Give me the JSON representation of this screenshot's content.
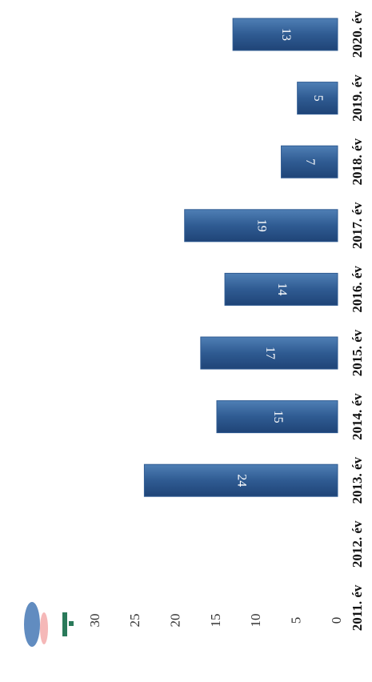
{
  "chart_data": {
    "type": "bar",
    "orientation": "horizontal",
    "categories": [
      "2011. év",
      "2012. év",
      "2013. év",
      "2014. év",
      "2015. év",
      "2016. év",
      "2017. év",
      "2018. év",
      "2019. év",
      "2020. év"
    ],
    "values": [
      null,
      null,
      24,
      15,
      17,
      14,
      19,
      7,
      5,
      13
    ],
    "color": "#2f5b92",
    "ylim": [
      0,
      30
    ],
    "yticks": [
      0,
      5,
      10,
      15,
      20,
      25,
      30
    ],
    "grid": false
  }
}
